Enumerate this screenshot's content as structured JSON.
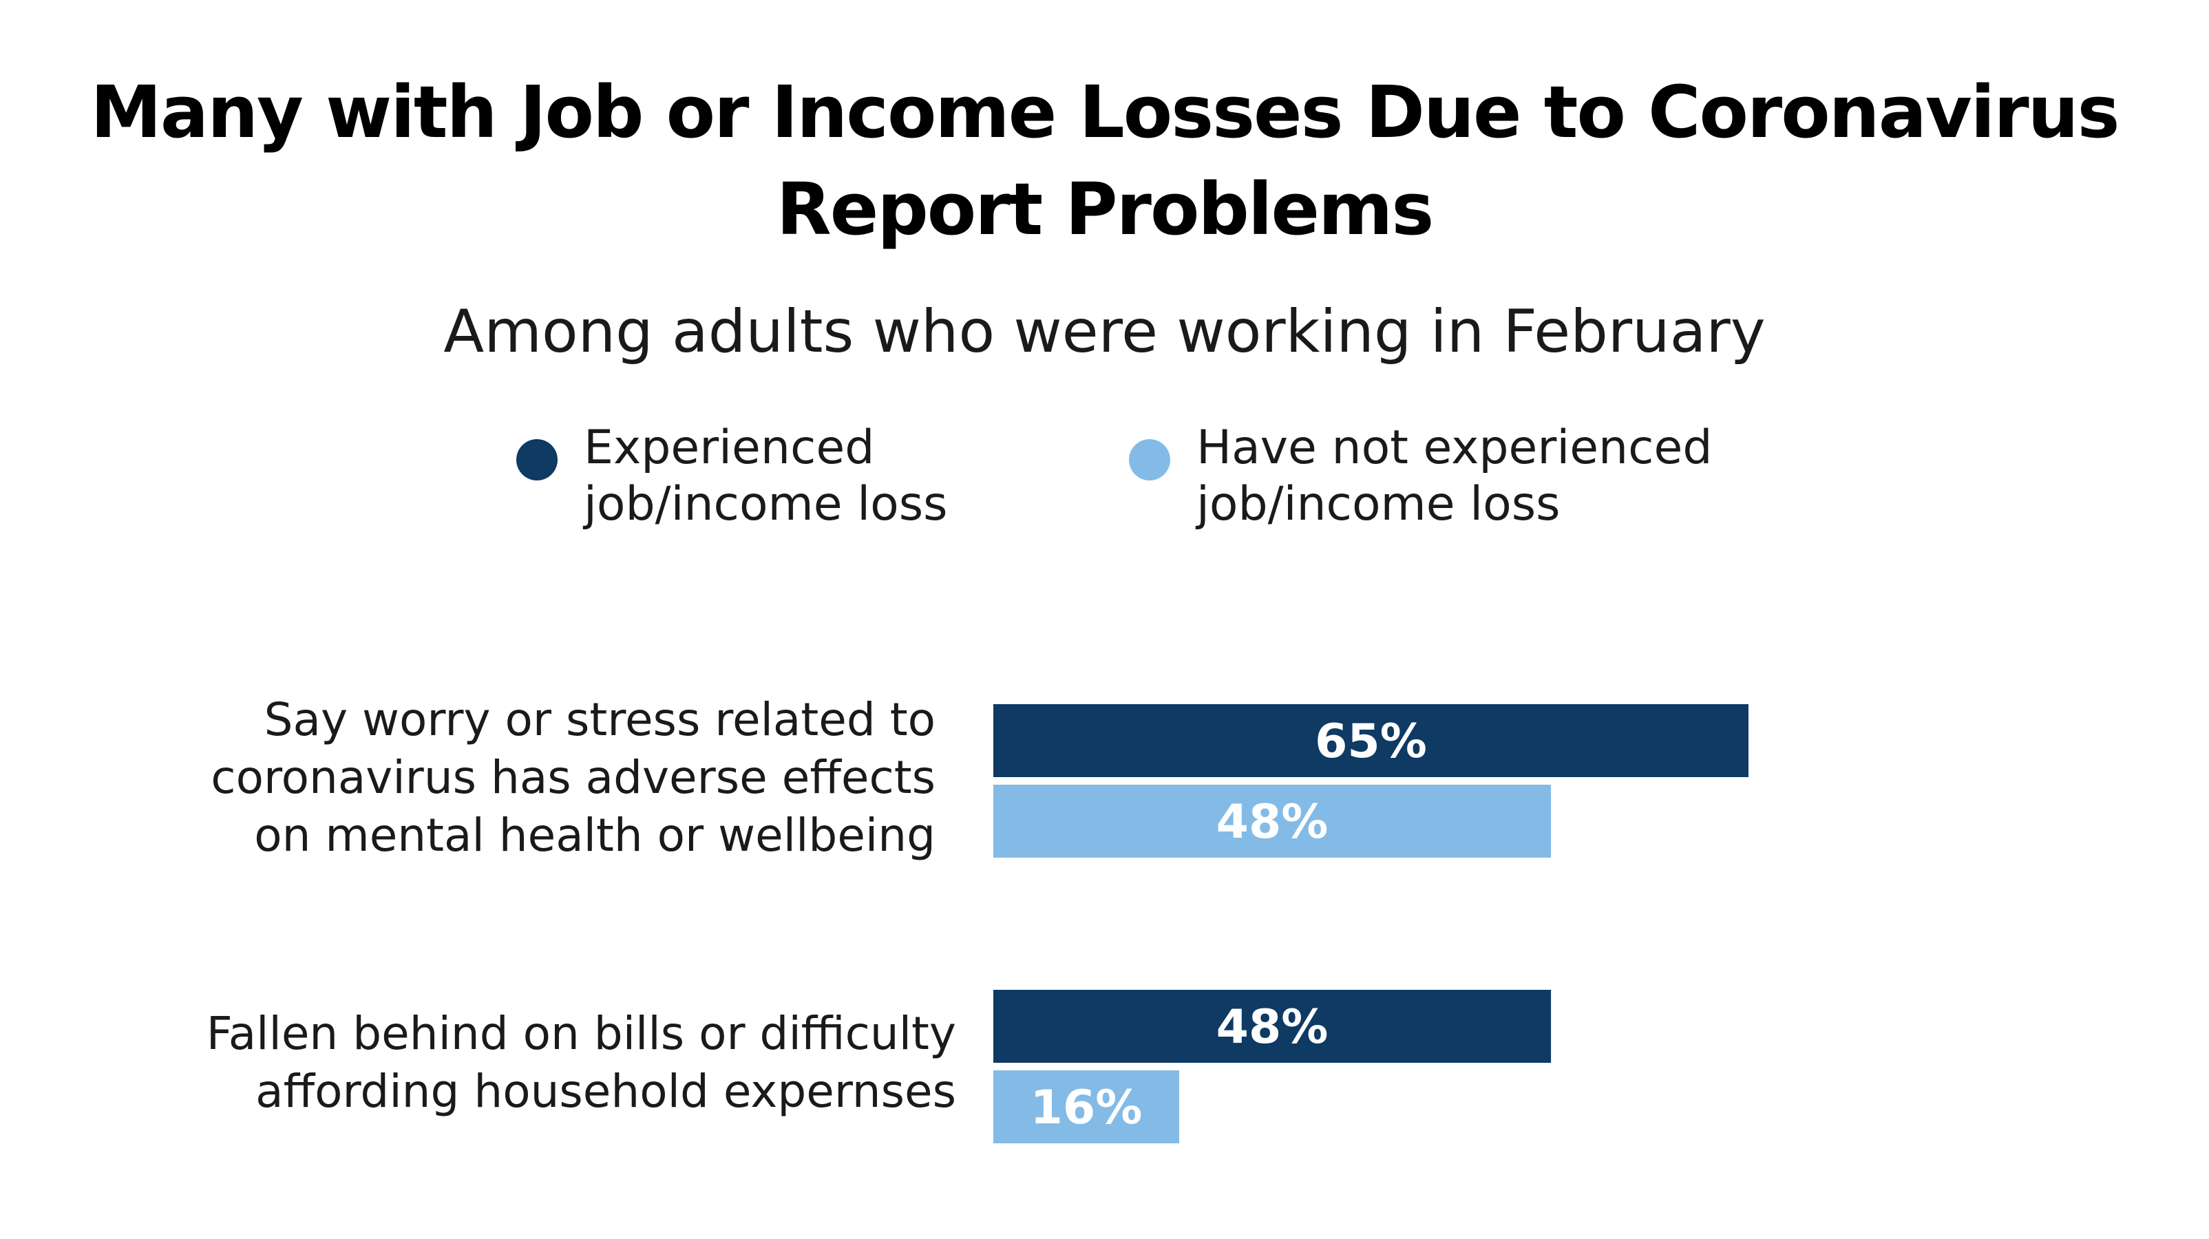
{
  "chart_data": {
    "type": "bar",
    "orientation": "horizontal",
    "title": "Many with Job or Income Losses Due to Coronavirus Report Problems",
    "title_lines": [
      "Many with Job or Income Losses Due to Coronavirus",
      "Report Problems"
    ],
    "subtitle": "Among adults who were working in February",
    "categories": [
      "Say worry or stress related to coronavirus has adverse effects on mental health or wellbeing",
      "Fallen behind on bills or difficulty affording household expernses"
    ],
    "category_lines": [
      [
        "Say worry or stress related to",
        "coronavirus has adverse effects",
        "on mental health or wellbeing"
      ],
      [
        "Fallen behind on bills or difficulty",
        "affording household expernses"
      ]
    ],
    "series": [
      {
        "name": "Experienced job/income loss",
        "name_lines": [
          "Experienced",
          "job/income loss"
        ],
        "color": "#0e3a63",
        "values": [
          65,
          48
        ],
        "labels": [
          "65%",
          "48%"
        ]
      },
      {
        "name": "Have not experienced job/income loss",
        "name_lines": [
          "Have not experienced",
          "job/income loss"
        ],
        "color": "#83bbe6",
        "values": [
          48,
          16
        ],
        "labels": [
          "48%",
          "16%"
        ]
      }
    ],
    "value_unit": "%",
    "xlim": [
      0,
      100
    ],
    "grid": false,
    "legend_position": "top"
  }
}
